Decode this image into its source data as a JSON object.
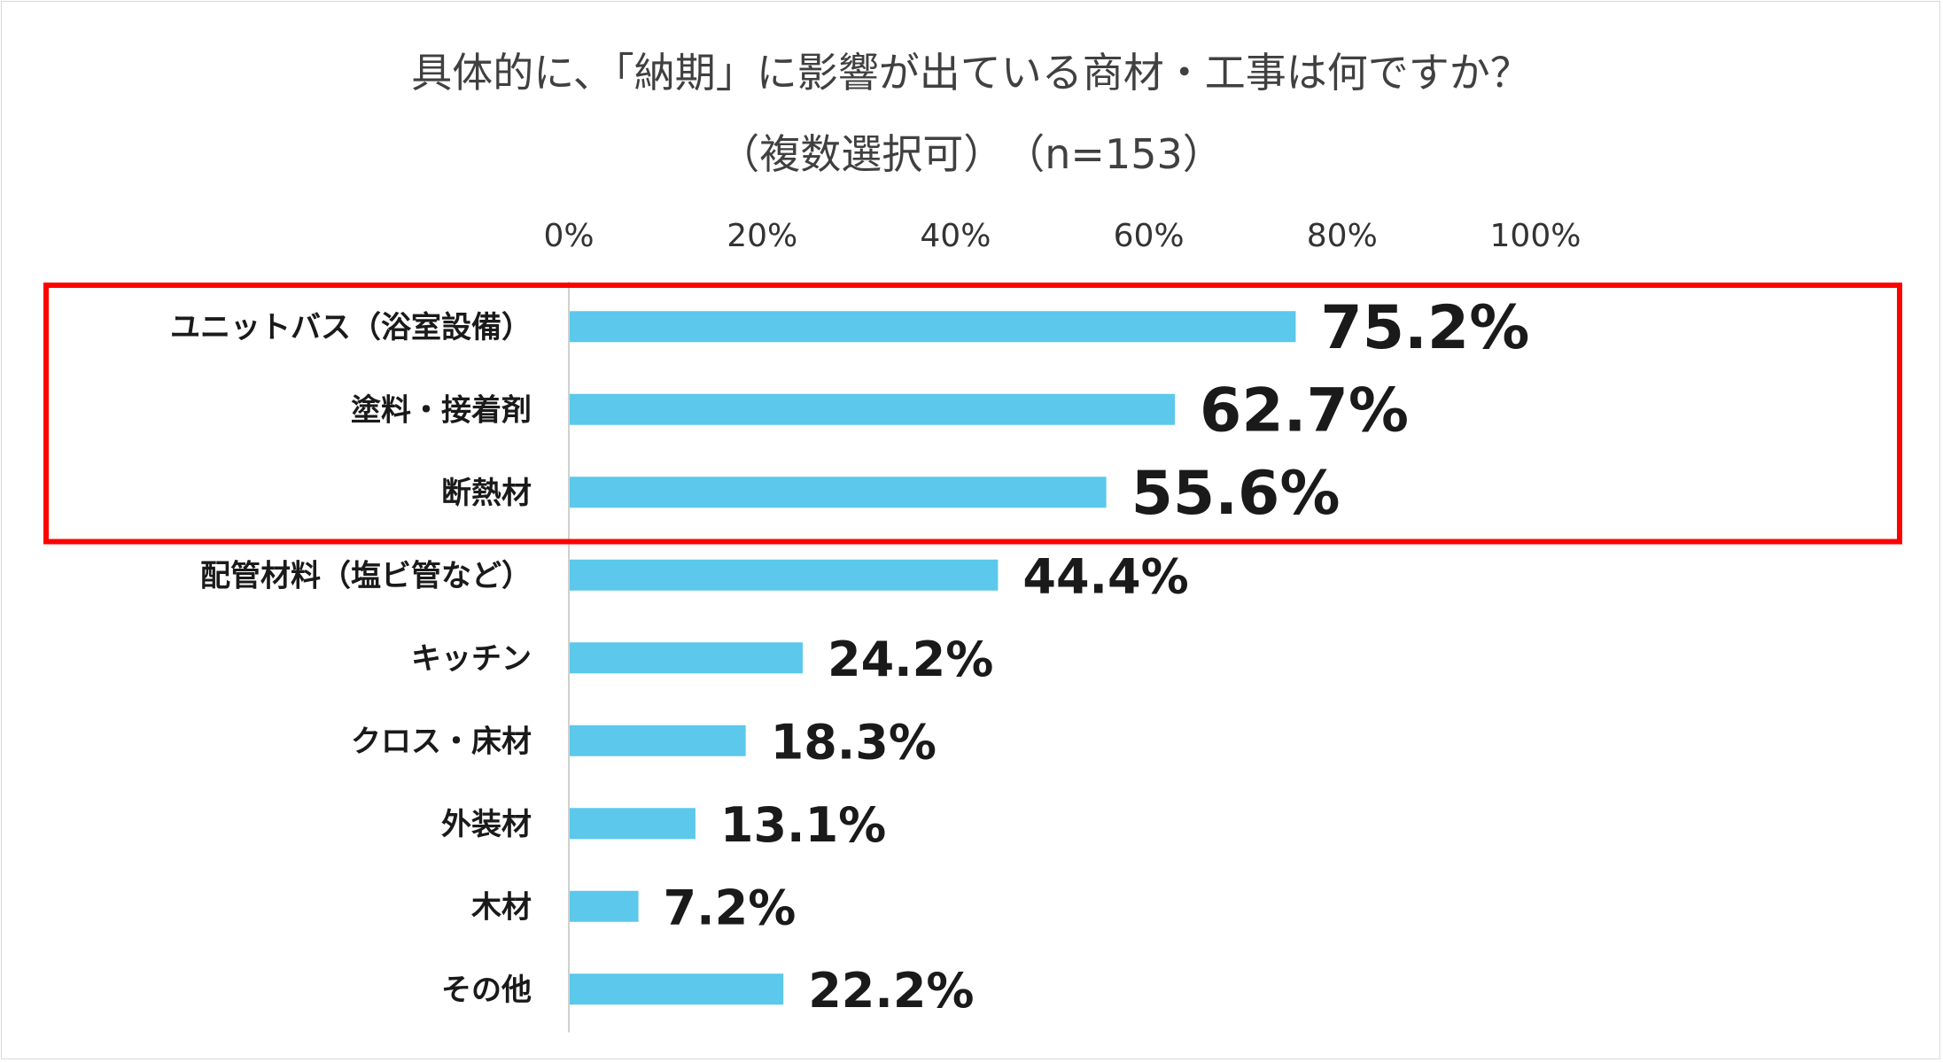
{
  "chart_data": {
    "type": "bar",
    "orientation": "horizontal",
    "title": "具体的に、「納期」に影響が出ている商材・工事は何ですか？",
    "subtitle": "（複数選択可）　（n=153）",
    "categories": [
      "ユニットバス（浴室設備）",
      "塗料・接着剤",
      "断熱材",
      "配管材料（塩ビ管など）",
      "キッチン",
      "クロス・床材",
      "外装材",
      "木材",
      "その他"
    ],
    "values": [
      75.2,
      62.7,
      55.6,
      44.4,
      24.2,
      18.3,
      13.1,
      7.2,
      22.2
    ],
    "value_labels": [
      "75.2%",
      "62.7%",
      "55.6%",
      "44.4%",
      "24.2%",
      "18.3%",
      "13.1%",
      "7.2%",
      "22.2%"
    ],
    "xlim": [
      0,
      100
    ],
    "x_ticks": [
      "0%",
      "20%",
      "40%",
      "60%",
      "80%",
      "100%"
    ],
    "x_axis_position": "top",
    "grid": false,
    "bar_color": "#5bc8ec",
    "highlight_color": "#ff0000",
    "highlighted_categories": [
      "ユニットバス（浴室設備）",
      "塗料・接着剤",
      "断熱材"
    ]
  }
}
